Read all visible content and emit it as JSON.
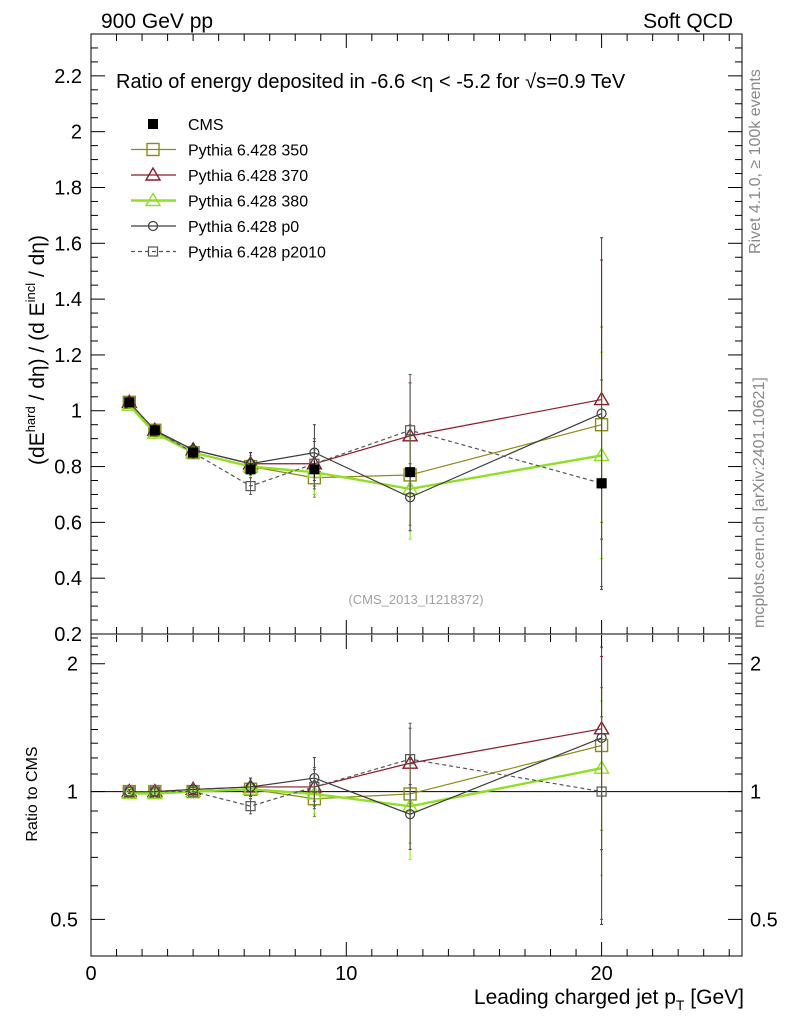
{
  "header": {
    "left": "900 GeV pp",
    "right": "Soft QCD"
  },
  "side": {
    "rivet": "Rivet 4.1.0, ≥ 100k events",
    "mcplots": "mcplots.cern.ch [arXiv:2401.10621]"
  },
  "chart_data": {
    "type": "line",
    "title": "Ratio of energy deposited in -6.6 <η < -5.2 for √s=0.9 TeV",
    "xlabel": "Leading charged jet p",
    "xlabel_sub": "T",
    "xlabel_unit": " [GeV]",
    "ylabel": "(dE^hard / dη) / (d E^incl / dη)",
    "ylabel_parts": {
      "a": "(dE",
      "sup1": "hard",
      "b": " / dη) / (d E",
      "sup2": "incl",
      "c": " / dη)"
    },
    "ratio_ylabel": "Ratio to CMS",
    "watermark": "(CMS_2013_I1218372)",
    "xlim": [
      0,
      25.5
    ],
    "ylim": [
      0.2,
      2.35
    ],
    "ratio_ylim": [
      0.41,
      2.35
    ],
    "xticks": [
      0,
      10,
      20
    ],
    "xtick_labels": [
      "0",
      "10",
      "20"
    ],
    "yticks": [
      0.2,
      0.4,
      0.6,
      0.8,
      1,
      1.2,
      1.4,
      1.6,
      1.8,
      2,
      2.2
    ],
    "ytick_labels": [
      "0.2",
      "0.4",
      "0.6",
      "0.8",
      "1",
      "1.2",
      "1.4",
      "1.6",
      "1.8",
      "2",
      "2.2"
    ],
    "ratio_yticks": [
      0.5,
      1,
      2
    ],
    "ratio_ytick_labels": [
      "0.5",
      "1",
      "2"
    ],
    "x": [
      1.5,
      2.5,
      4,
      6.25,
      8.75,
      12.5,
      20
    ],
    "data": {
      "name": "CMS",
      "y": [
        1.03,
        0.93,
        0.85,
        0.79,
        0.79,
        0.78,
        0.74
      ],
      "err": [
        0.01,
        0.01,
        0.01,
        0.02,
        0.03,
        0.02,
        0.02
      ]
    },
    "series": [
      {
        "name": "Pythia 6.428 350",
        "color": "#8b8b16",
        "marker": "square",
        "dash": "",
        "width": 1.2,
        "y": [
          1.03,
          0.93,
          0.85,
          0.8,
          0.76,
          0.77,
          0.95
        ],
        "err": [
          0.01,
          0.02,
          0.02,
          0.04,
          0.07,
          0.18,
          0.35
        ]
      },
      {
        "name": "Pythia 6.428 370",
        "color": "#8b1a2a",
        "marker": "triangle",
        "dash": "",
        "width": 1.2,
        "y": [
          1.03,
          0.93,
          0.86,
          0.81,
          0.81,
          0.91,
          1.04
        ],
        "err": [
          0.01,
          0.02,
          0.02,
          0.04,
          0.08,
          0.19,
          0.5
        ]
      },
      {
        "name": "Pythia 6.428 380",
        "color": "#8fe024",
        "marker": "triangle",
        "dash": "",
        "width": 2.4,
        "y": [
          1.02,
          0.92,
          0.85,
          0.8,
          0.78,
          0.72,
          0.84
        ],
        "err": [
          0.01,
          0.02,
          0.02,
          0.04,
          0.08,
          0.18,
          0.37
        ]
      },
      {
        "name": "Pythia 6.428 p0",
        "color": "#3c3c3c",
        "marker": "circle",
        "dash": "",
        "width": 1.2,
        "y": [
          1.03,
          0.93,
          0.86,
          0.81,
          0.85,
          0.69,
          0.99
        ],
        "err": [
          0.01,
          0.02,
          0.02,
          0.04,
          0.1,
          0.12,
          0.63
        ]
      },
      {
        "name": "Pythia 6.428 p2010",
        "color": "#555555",
        "marker": "opensquare",
        "dash": "4,3",
        "width": 1.2,
        "y": [
          1.03,
          0.93,
          0.85,
          0.73,
          0.81,
          0.93,
          0.74
        ],
        "err": [
          0.01,
          0.02,
          0.02,
          0.03,
          0.09,
          0.2,
          0.37
        ]
      }
    ]
  }
}
